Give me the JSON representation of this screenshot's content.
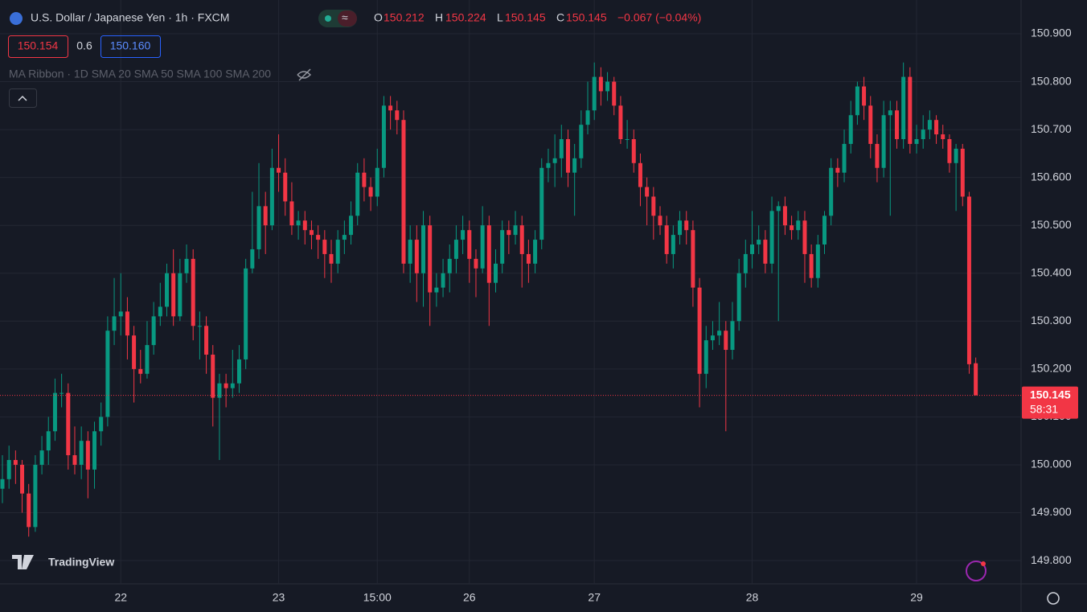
{
  "header": {
    "symbol": "U.S. Dollar / Japanese Yen · 1h · FXCM",
    "o_key": "O",
    "o": "150.212",
    "h_key": "H",
    "h": "150.224",
    "l_key": "L",
    "l": "150.145",
    "c_key": "C",
    "c": "150.145",
    "change": "−0.067 (−0.04%)",
    "bid": "150.154",
    "spread": "0.6",
    "ask": "150.160",
    "indicator": "MA Ribbon · 1D SMA 20 SMA 50 SMA 100 SMA 200",
    "logo": "TradingView"
  },
  "chart_data": {
    "type": "candlestick",
    "up_color": "#089981",
    "down_color": "#f23645",
    "grid": true,
    "ylim": [
      149.75,
      150.975
    ],
    "yticks": [
      {
        "value": 149.8,
        "label": "149.800"
      },
      {
        "value": 149.9,
        "label": "149.900"
      },
      {
        "value": 150.0,
        "label": "150.000"
      },
      {
        "value": 150.1,
        "label": "150.100"
      },
      {
        "value": 150.2,
        "label": "150.200"
      },
      {
        "value": 150.3,
        "label": "150.300"
      },
      {
        "value": 150.4,
        "label": "150.400"
      },
      {
        "value": 150.5,
        "label": "150.500"
      },
      {
        "value": 150.6,
        "label": "150.600"
      },
      {
        "value": 150.7,
        "label": "150.700"
      },
      {
        "value": 150.8,
        "label": "150.800"
      },
      {
        "value": 150.9,
        "label": "150.900"
      }
    ],
    "xticks": [
      {
        "value": 18,
        "label": "22"
      },
      {
        "value": 42,
        "label": "23"
      },
      {
        "value": 57,
        "label": "15:00"
      },
      {
        "value": 71,
        "label": "26"
      },
      {
        "value": 90,
        "label": "27"
      },
      {
        "value": 114,
        "label": "28"
      },
      {
        "value": 139,
        "label": "29"
      }
    ],
    "price_line": {
      "value": 150.145,
      "label": "150.145",
      "countdown": "58:31"
    },
    "ohlc": [
      [
        149.95,
        150.02,
        149.92,
        149.97
      ],
      [
        149.97,
        150.04,
        149.95,
        150.01
      ],
      [
        150.01,
        150.03,
        149.96,
        150.0
      ],
      [
        150.0,
        150.01,
        149.9,
        149.94
      ],
      [
        149.94,
        149.96,
        149.85,
        149.87
      ],
      [
        149.87,
        150.02,
        149.86,
        150.0
      ],
      [
        150.0,
        150.06,
        149.98,
        150.03
      ],
      [
        150.03,
        150.1,
        150.0,
        150.07
      ],
      [
        150.07,
        150.18,
        150.05,
        150.15
      ],
      [
        150.15,
        150.19,
        150.12,
        150.15
      ],
      [
        150.15,
        150.17,
        149.99,
        150.02
      ],
      [
        150.02,
        150.08,
        149.98,
        150.0
      ],
      [
        150.0,
        150.08,
        149.97,
        150.05
      ],
      [
        150.05,
        150.07,
        149.93,
        149.99
      ],
      [
        149.99,
        150.09,
        149.95,
        150.07
      ],
      [
        150.07,
        150.13,
        150.04,
        150.1
      ],
      [
        150.1,
        150.31,
        150.08,
        150.28
      ],
      [
        150.28,
        150.39,
        150.25,
        150.31
      ],
      [
        150.31,
        150.4,
        150.27,
        150.32
      ],
      [
        150.32,
        150.35,
        150.22,
        150.27
      ],
      [
        150.27,
        150.29,
        150.13,
        150.2
      ],
      [
        150.2,
        150.24,
        150.17,
        150.19
      ],
      [
        150.19,
        150.3,
        150.18,
        150.25
      ],
      [
        150.25,
        150.34,
        150.23,
        150.31
      ],
      [
        150.31,
        150.38,
        150.29,
        150.33
      ],
      [
        150.33,
        150.42,
        150.31,
        150.4
      ],
      [
        150.4,
        150.45,
        150.29,
        150.31
      ],
      [
        150.31,
        150.43,
        150.3,
        150.4
      ],
      [
        150.4,
        150.46,
        150.38,
        150.43
      ],
      [
        150.43,
        150.45,
        150.26,
        150.29
      ],
      [
        150.29,
        150.32,
        150.22,
        150.29
      ],
      [
        150.29,
        150.31,
        150.19,
        150.23
      ],
      [
        150.23,
        150.25,
        150.08,
        150.14
      ],
      [
        150.14,
        150.19,
        150.01,
        150.17
      ],
      [
        150.17,
        150.19,
        150.12,
        150.16
      ],
      [
        150.16,
        150.24,
        150.14,
        150.17
      ],
      [
        150.17,
        150.25,
        150.15,
        150.22
      ],
      [
        150.22,
        150.43,
        150.2,
        150.41
      ],
      [
        150.41,
        150.57,
        150.4,
        150.45
      ],
      [
        150.45,
        150.63,
        150.43,
        150.54
      ],
      [
        150.54,
        150.57,
        150.44,
        150.5
      ],
      [
        150.5,
        150.66,
        150.49,
        150.62
      ],
      [
        150.62,
        150.69,
        150.57,
        150.61
      ],
      [
        150.61,
        150.64,
        150.52,
        150.55
      ],
      [
        150.55,
        150.59,
        150.48,
        150.5
      ],
      [
        150.5,
        150.53,
        150.47,
        150.51
      ],
      [
        150.51,
        150.53,
        150.46,
        150.49
      ],
      [
        150.49,
        150.51,
        150.45,
        150.48
      ],
      [
        150.48,
        150.5,
        150.43,
        150.47
      ],
      [
        150.47,
        150.49,
        150.39,
        150.44
      ],
      [
        150.44,
        150.47,
        150.38,
        150.42
      ],
      [
        150.42,
        150.49,
        150.4,
        150.47
      ],
      [
        150.47,
        150.51,
        150.44,
        150.48
      ],
      [
        150.48,
        150.55,
        150.46,
        150.52
      ],
      [
        150.52,
        150.63,
        150.5,
        150.61
      ],
      [
        150.61,
        150.64,
        150.55,
        150.58
      ],
      [
        150.58,
        150.6,
        150.53,
        150.56
      ],
      [
        150.56,
        150.66,
        150.54,
        150.62
      ],
      [
        150.62,
        150.77,
        150.6,
        150.75
      ],
      [
        150.75,
        150.77,
        150.7,
        150.74
      ],
      [
        150.74,
        150.76,
        150.69,
        150.72
      ],
      [
        150.72,
        150.74,
        150.4,
        150.42
      ],
      [
        150.42,
        150.5,
        150.38,
        150.47
      ],
      [
        150.47,
        150.5,
        150.34,
        150.4
      ],
      [
        150.4,
        150.53,
        150.33,
        150.5
      ],
      [
        150.5,
        150.52,
        150.29,
        150.36
      ],
      [
        150.36,
        150.4,
        150.33,
        150.37
      ],
      [
        150.37,
        150.43,
        150.35,
        150.4
      ],
      [
        150.4,
        150.46,
        150.36,
        150.43
      ],
      [
        150.43,
        150.5,
        150.4,
        150.47
      ],
      [
        150.47,
        150.52,
        150.44,
        150.49
      ],
      [
        150.49,
        150.51,
        150.38,
        150.43
      ],
      [
        150.43,
        150.45,
        150.35,
        150.41
      ],
      [
        150.41,
        150.54,
        150.4,
        150.5
      ],
      [
        150.5,
        150.52,
        150.29,
        150.38
      ],
      [
        150.38,
        150.45,
        150.36,
        150.42
      ],
      [
        150.42,
        150.51,
        150.4,
        150.49
      ],
      [
        150.49,
        150.51,
        150.44,
        150.48
      ],
      [
        150.48,
        150.53,
        150.46,
        150.5
      ],
      [
        150.5,
        150.52,
        150.37,
        150.44
      ],
      [
        150.44,
        150.47,
        150.38,
        150.42
      ],
      [
        150.42,
        150.49,
        150.4,
        150.47
      ],
      [
        150.47,
        150.64,
        150.45,
        150.62
      ],
      [
        150.62,
        150.66,
        150.59,
        150.63
      ],
      [
        150.63,
        150.69,
        150.58,
        150.64
      ],
      [
        150.64,
        150.71,
        150.6,
        150.68
      ],
      [
        150.68,
        150.7,
        150.58,
        150.61
      ],
      [
        150.61,
        150.67,
        150.52,
        150.64
      ],
      [
        150.64,
        150.74,
        150.62,
        150.71
      ],
      [
        150.71,
        150.8,
        150.69,
        150.74
      ],
      [
        150.74,
        150.84,
        150.72,
        150.81
      ],
      [
        150.81,
        150.83,
        150.75,
        150.78
      ],
      [
        150.78,
        150.82,
        150.76,
        150.8
      ],
      [
        150.8,
        150.81,
        150.73,
        150.75
      ],
      [
        150.75,
        150.77,
        150.67,
        150.68
      ],
      [
        150.68,
        150.72,
        150.66,
        150.68
      ],
      [
        150.68,
        150.7,
        150.61,
        150.63
      ],
      [
        150.63,
        150.65,
        150.54,
        150.58
      ],
      [
        150.58,
        150.6,
        150.5,
        150.56
      ],
      [
        150.56,
        150.58,
        150.47,
        150.52
      ],
      [
        150.52,
        150.54,
        150.48,
        150.5
      ],
      [
        150.5,
        150.52,
        150.42,
        150.44
      ],
      [
        150.44,
        150.5,
        150.41,
        150.48
      ],
      [
        150.48,
        150.53,
        150.46,
        150.51
      ],
      [
        150.51,
        150.53,
        150.46,
        150.49
      ],
      [
        150.49,
        150.51,
        150.33,
        150.37
      ],
      [
        150.37,
        150.39,
        150.12,
        150.19
      ],
      [
        150.19,
        150.29,
        150.16,
        150.26
      ],
      [
        150.26,
        150.3,
        150.24,
        150.27
      ],
      [
        150.27,
        150.34,
        150.25,
        150.28
      ],
      [
        150.28,
        150.3,
        150.07,
        150.24
      ],
      [
        150.24,
        150.34,
        150.22,
        150.3
      ],
      [
        150.3,
        150.43,
        150.28,
        150.4
      ],
      [
        150.4,
        150.47,
        150.37,
        150.44
      ],
      [
        150.44,
        150.53,
        150.41,
        150.46
      ],
      [
        150.46,
        150.5,
        150.44,
        150.47
      ],
      [
        150.47,
        150.49,
        150.4,
        150.42
      ],
      [
        150.42,
        150.56,
        150.4,
        150.53
      ],
      [
        150.53,
        150.55,
        150.3,
        150.54
      ],
      [
        150.54,
        150.56,
        150.48,
        150.5
      ],
      [
        150.5,
        150.52,
        150.47,
        150.49
      ],
      [
        150.49,
        150.53,
        150.47,
        150.51
      ],
      [
        150.51,
        150.53,
        150.38,
        150.44
      ],
      [
        150.44,
        150.46,
        150.37,
        150.39
      ],
      [
        150.39,
        150.48,
        150.37,
        150.46
      ],
      [
        150.46,
        150.53,
        150.44,
        150.52
      ],
      [
        150.52,
        150.64,
        150.5,
        150.62
      ],
      [
        150.62,
        150.64,
        150.58,
        150.61
      ],
      [
        150.61,
        150.7,
        150.59,
        150.67
      ],
      [
        150.67,
        150.76,
        150.65,
        150.73
      ],
      [
        150.73,
        150.8,
        150.71,
        150.79
      ],
      [
        150.79,
        150.81,
        150.72,
        150.75
      ],
      [
        150.75,
        150.77,
        150.64,
        150.67
      ],
      [
        150.67,
        150.69,
        150.59,
        150.62
      ],
      [
        150.62,
        150.76,
        150.6,
        150.73
      ],
      [
        150.73,
        150.76,
        150.52,
        150.74
      ],
      [
        150.74,
        150.76,
        150.66,
        150.68
      ],
      [
        150.68,
        150.84,
        150.66,
        150.81
      ],
      [
        150.81,
        150.83,
        150.65,
        150.67
      ],
      [
        150.67,
        150.71,
        150.65,
        150.68
      ],
      [
        150.68,
        150.73,
        150.66,
        150.7
      ],
      [
        150.7,
        150.74,
        150.68,
        150.72
      ],
      [
        150.72,
        150.73,
        150.67,
        150.69
      ],
      [
        150.69,
        150.71,
        150.66,
        150.68
      ],
      [
        150.68,
        150.69,
        150.61,
        150.63
      ],
      [
        150.63,
        150.67,
        150.53,
        150.66
      ],
      [
        150.66,
        150.67,
        150.54,
        150.56
      ],
      [
        150.56,
        150.57,
        150.19,
        150.21
      ],
      [
        150.212,
        150.224,
        150.145,
        150.145
      ]
    ]
  }
}
